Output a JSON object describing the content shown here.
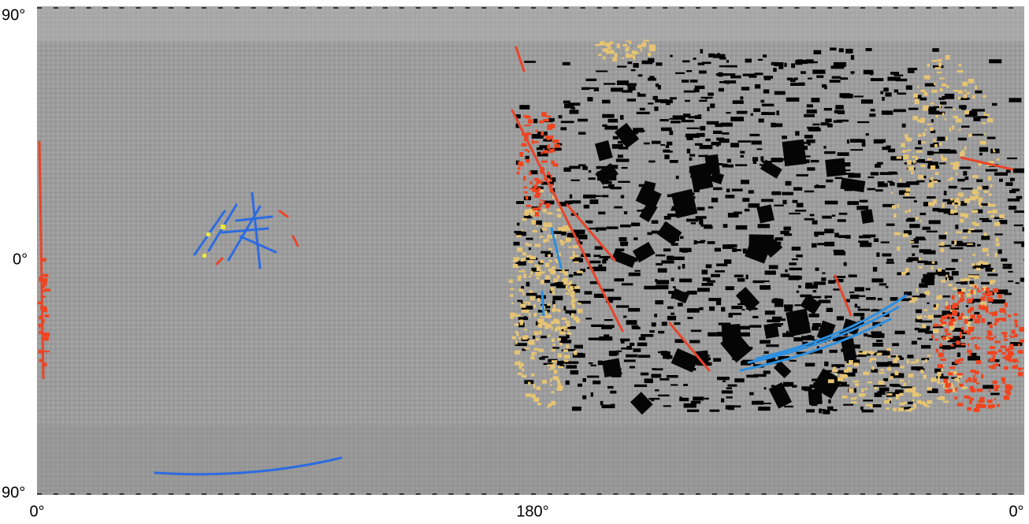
{
  "map": {
    "y_labels": [
      "90°",
      "0°",
      "90°"
    ],
    "x_labels": [
      "0°",
      "180°",
      "0°"
    ]
  }
}
